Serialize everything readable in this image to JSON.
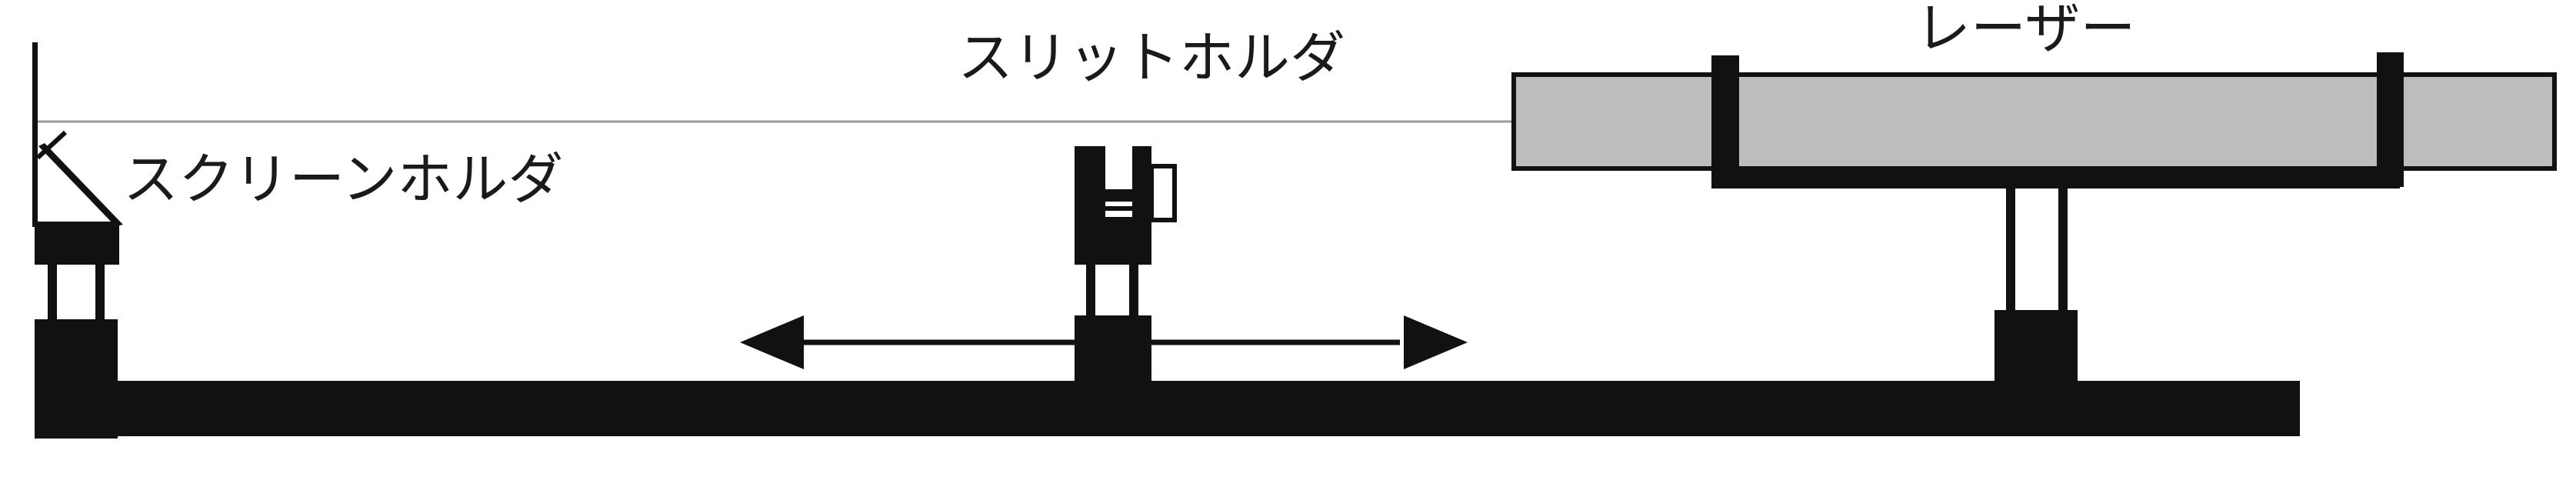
{
  "labels": {
    "screen_holder": "スクリーンホルダ",
    "slit_holder": "スリットホルダ",
    "laser": "レーザー"
  },
  "colors": {
    "ink": "#111111",
    "laser_body": "#bdbdbd",
    "beam": "#9a9a9a",
    "background": "#ffffff"
  },
  "icons": {
    "movement_arrow": "double-headed-arrow-icon"
  }
}
